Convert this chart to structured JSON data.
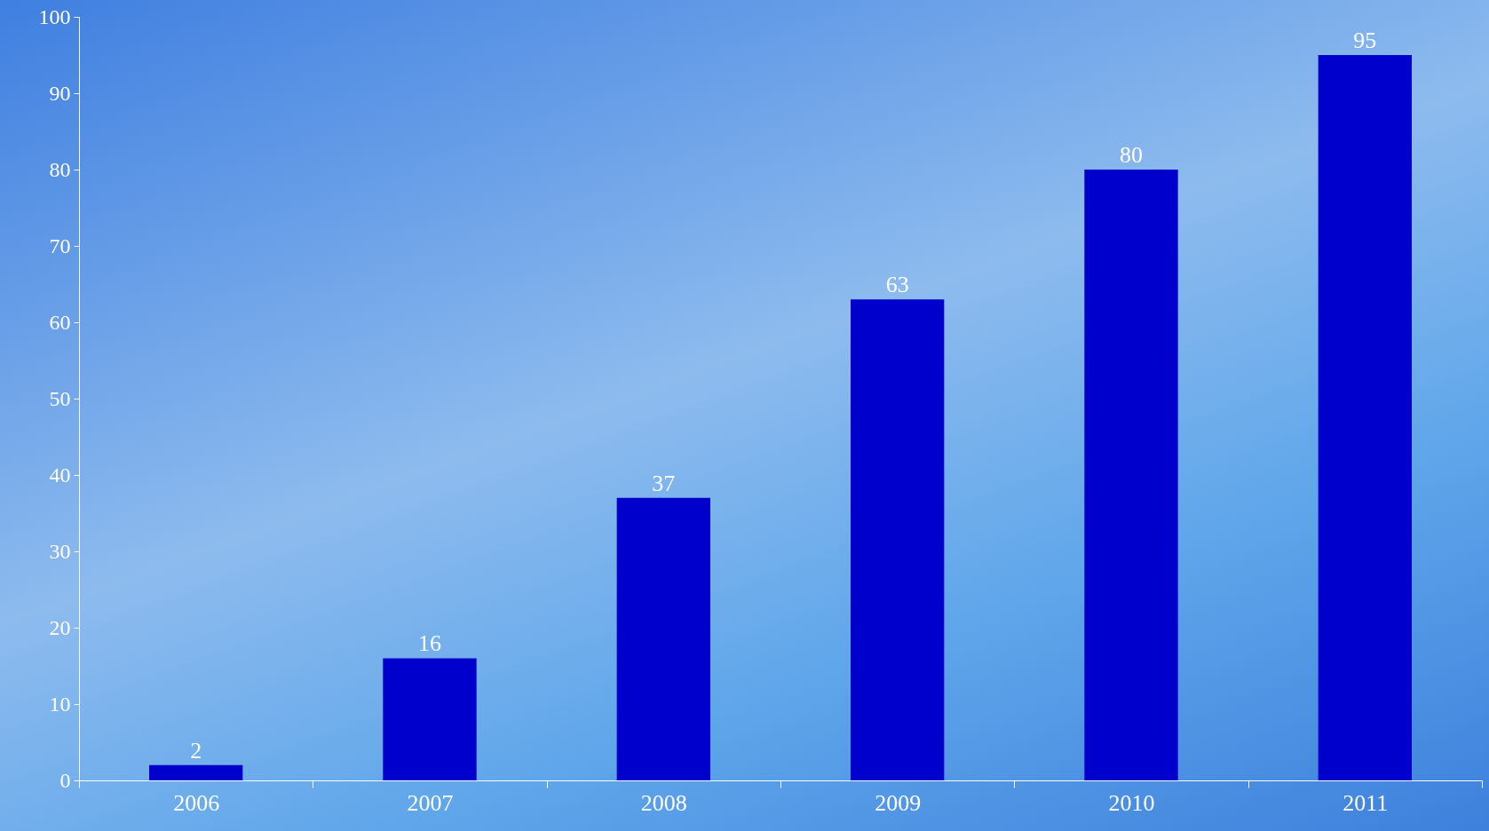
{
  "chart_data": {
    "type": "bar",
    "categories": [
      "2006",
      "2007",
      "2008",
      "2009",
      "2010",
      "2011"
    ],
    "values": [
      2,
      16,
      37,
      63,
      80,
      95
    ],
    "color": "#0000cc",
    "ylim": [
      0,
      100
    ],
    "yticks": [
      0,
      10,
      20,
      30,
      40,
      50,
      60,
      70,
      80,
      90,
      100
    ],
    "data_labels": true
  }
}
